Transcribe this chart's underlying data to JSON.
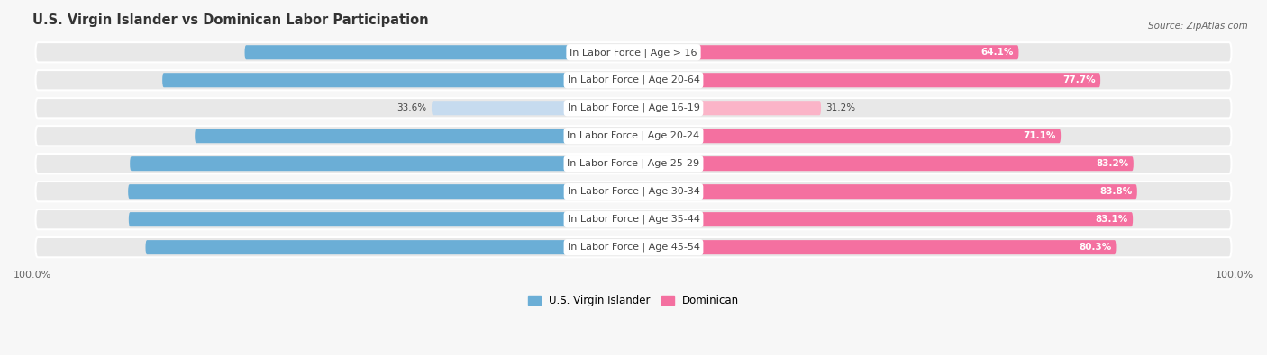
{
  "title": "U.S. Virgin Islander vs Dominican Labor Participation",
  "source": "Source: ZipAtlas.com",
  "categories": [
    "In Labor Force | Age > 16",
    "In Labor Force | Age 20-64",
    "In Labor Force | Age 16-19",
    "In Labor Force | Age 20-24",
    "In Labor Force | Age 25-29",
    "In Labor Force | Age 30-34",
    "In Labor Force | Age 35-44",
    "In Labor Force | Age 45-54"
  ],
  "virgin_values": [
    64.7,
    78.4,
    33.6,
    73.0,
    83.8,
    84.1,
    84.0,
    81.2
  ],
  "dominican_values": [
    64.1,
    77.7,
    31.2,
    71.1,
    83.2,
    83.8,
    83.1,
    80.3
  ],
  "virgin_color": "#6baed6",
  "dominican_color": "#f470a0",
  "virgin_color_light": "#c6dbef",
  "dominican_color_light": "#fbb4c8",
  "background_color": "#f7f7f7",
  "row_bg_color": "#e8e8e8",
  "max_value": 100.0,
  "title_fontsize": 10.5,
  "label_fontsize": 8.0,
  "value_fontsize": 7.5,
  "legend_fontsize": 8.5,
  "virgin_label": "U.S. Virgin Islander",
  "dominican_label": "Dominican"
}
